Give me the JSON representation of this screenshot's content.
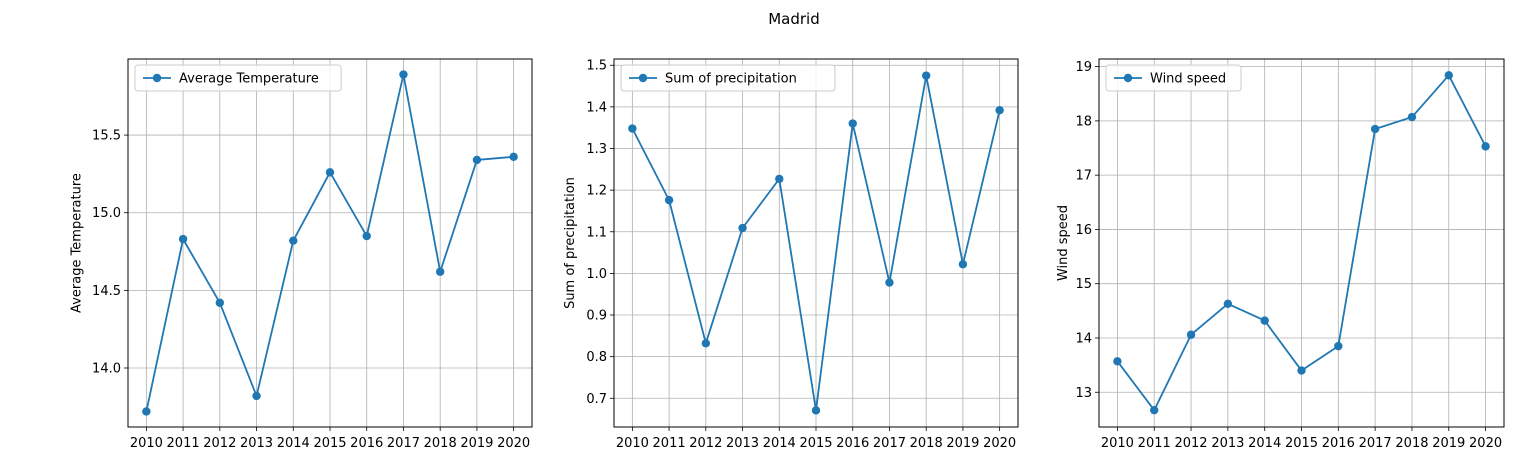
{
  "figure": {
    "title": "Madrid",
    "line_color": "#1f77b4",
    "grid_color": "#b0b0b0"
  },
  "chart_data": [
    {
      "type": "line",
      "x": [
        2010,
        2011,
        2012,
        2013,
        2014,
        2015,
        2016,
        2017,
        2018,
        2019,
        2020
      ],
      "series": [
        {
          "name": "Average Temperature",
          "values": [
            13.72,
            14.83,
            14.42,
            13.82,
            14.82,
            15.26,
            14.85,
            15.89,
            14.62,
            15.34,
            15.36
          ]
        }
      ],
      "title": "",
      "xlabel": "",
      "ylabel": "Average Temperature",
      "xlim": [
        2009.5,
        2020.5
      ],
      "ylim": [
        13.62,
        15.99
      ],
      "yticks": [
        14.0,
        14.5,
        15.0,
        15.5
      ],
      "ytick_labels": [
        "14.0",
        "14.5",
        "15.0",
        "15.5"
      ],
      "grid": true,
      "legend": "upper left",
      "marker": "circle"
    },
    {
      "type": "line",
      "x": [
        2010,
        2011,
        2012,
        2013,
        2014,
        2015,
        2016,
        2017,
        2018,
        2019,
        2020
      ],
      "series": [
        {
          "name": "Sum of precipitation",
          "values": [
            1.348,
            1.176,
            0.832,
            1.109,
            1.227,
            0.671,
            1.36,
            0.978,
            1.475,
            1.022,
            1.392
          ]
        }
      ],
      "title": "",
      "xlabel": "",
      "ylabel": "Sum of precipitation",
      "xlim": [
        2009.5,
        2020.5
      ],
      "ylim": [
        0.631,
        1.515
      ],
      "yticks": [
        0.7,
        0.8,
        0.9,
        1.0,
        1.1,
        1.2,
        1.3,
        1.4,
        1.5
      ],
      "ytick_labels": [
        "0.7",
        "0.8",
        "0.9",
        "1.0",
        "1.1",
        "1.2",
        "1.3",
        "1.4",
        "1.5"
      ],
      "grid": true,
      "legend": "upper left",
      "marker": "circle"
    },
    {
      "type": "line",
      "x": [
        2010,
        2011,
        2012,
        2013,
        2014,
        2015,
        2016,
        2017,
        2018,
        2019,
        2020
      ],
      "series": [
        {
          "name": "Wind speed",
          "values": [
            13.57,
            12.67,
            14.06,
            14.63,
            14.32,
            13.4,
            13.85,
            17.85,
            18.07,
            18.84,
            17.53
          ]
        }
      ],
      "title": "",
      "xlabel": "",
      "ylabel": "Wind speed",
      "xlim": [
        2009.5,
        2020.5
      ],
      "ylim": [
        12.36,
        19.14
      ],
      "yticks": [
        13,
        14,
        15,
        16,
        17,
        18,
        19
      ],
      "ytick_labels": [
        "13",
        "14",
        "15",
        "16",
        "17",
        "18",
        "19"
      ],
      "grid": true,
      "legend": "upper left",
      "marker": "circle"
    }
  ]
}
